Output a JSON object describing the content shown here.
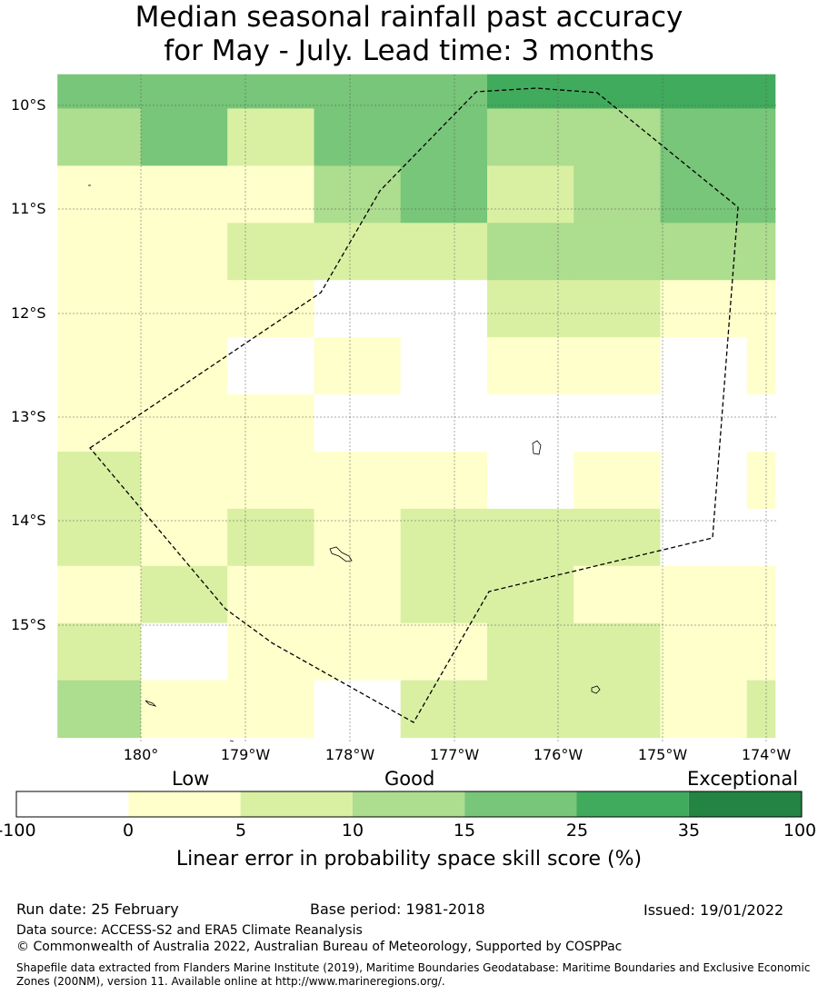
{
  "title": {
    "line1": "Median seasonal rainfall past accuracy",
    "line2": "for May - July. Lead time: 3 months"
  },
  "map": {
    "lat_labels": [
      "10°S",
      "11°S",
      "12°S",
      "13°S",
      "14°S",
      "15°S"
    ],
    "lon_labels": [
      "180°",
      "179°W",
      "178°W",
      "177°W",
      "176°W",
      "175°W",
      "174°W"
    ],
    "grid_columns_lon_west": [
      180.8,
      180.0,
      179.17,
      178.34,
      177.51,
      176.68,
      175.85,
      175.02,
      174.19,
      173.92
    ],
    "grid_rows_lat_south": [
      9.7,
      10.03,
      10.58,
      11.13,
      11.68,
      12.23,
      12.78,
      13.33,
      13.88,
      14.43,
      14.98,
      15.53,
      16.08
    ],
    "cells": [
      [
        4,
        4,
        4,
        4,
        4,
        5,
        5,
        5,
        5
      ],
      [
        3,
        4,
        2,
        4,
        4,
        3,
        3,
        4,
        4
      ],
      [
        1,
        1,
        1,
        3,
        4,
        2,
        3,
        4,
        4
      ],
      [
        1,
        1,
        2,
        2,
        2,
        3,
        3,
        3,
        3
      ],
      [
        1,
        1,
        1,
        0,
        0,
        2,
        2,
        1,
        1
      ],
      [
        1,
        1,
        0,
        1,
        0,
        1,
        1,
        0,
        1
      ],
      [
        1,
        1,
        1,
        0,
        0,
        0,
        0,
        0,
        0
      ],
      [
        2,
        1,
        1,
        1,
        1,
        0,
        1,
        0,
        1
      ],
      [
        2,
        1,
        2,
        1,
        2,
        2,
        2,
        0,
        0
      ],
      [
        1,
        2,
        1,
        1,
        2,
        2,
        1,
        1,
        1
      ],
      [
        2,
        0,
        1,
        1,
        1,
        2,
        2,
        1,
        1
      ],
      [
        3,
        1,
        1,
        0,
        2,
        2,
        2,
        1,
        2
      ]
    ]
  },
  "colorbar": {
    "ticks": [
      "-100",
      "0",
      "5",
      "10",
      "15",
      "25",
      "35",
      "100"
    ],
    "colors": [
      "#ffffff",
      "#ffffcc",
      "#d9f0a3",
      "#addd8e",
      "#78c679",
      "#41ab5d",
      "#238443"
    ],
    "categories": [
      "Low",
      "Good",
      "Exceptional"
    ],
    "label": "Linear error in probability space skill score (%)"
  },
  "footer": {
    "run_date": "Run date: 25 February",
    "base_period": "Base period: 1981-2018",
    "issued": "Issued: 19/01/2022",
    "data_source": "Data source: ACCESS-S2 and ERA5 Climate Reanalysis",
    "copyright": "© Commonwealth of Australia 2022, Australian Bureau of Meteorology, Supported by COSPPac",
    "shapefile_line1": "Shapefile data extracted from Flanders Marine Institute (2019), Maritime Boundaries Geodatabase: Maritime Boundaries and Exclusive Economic",
    "shapefile_line2": "Zones (200NM), version 11. Available online at http://www.marineregions.org/."
  }
}
